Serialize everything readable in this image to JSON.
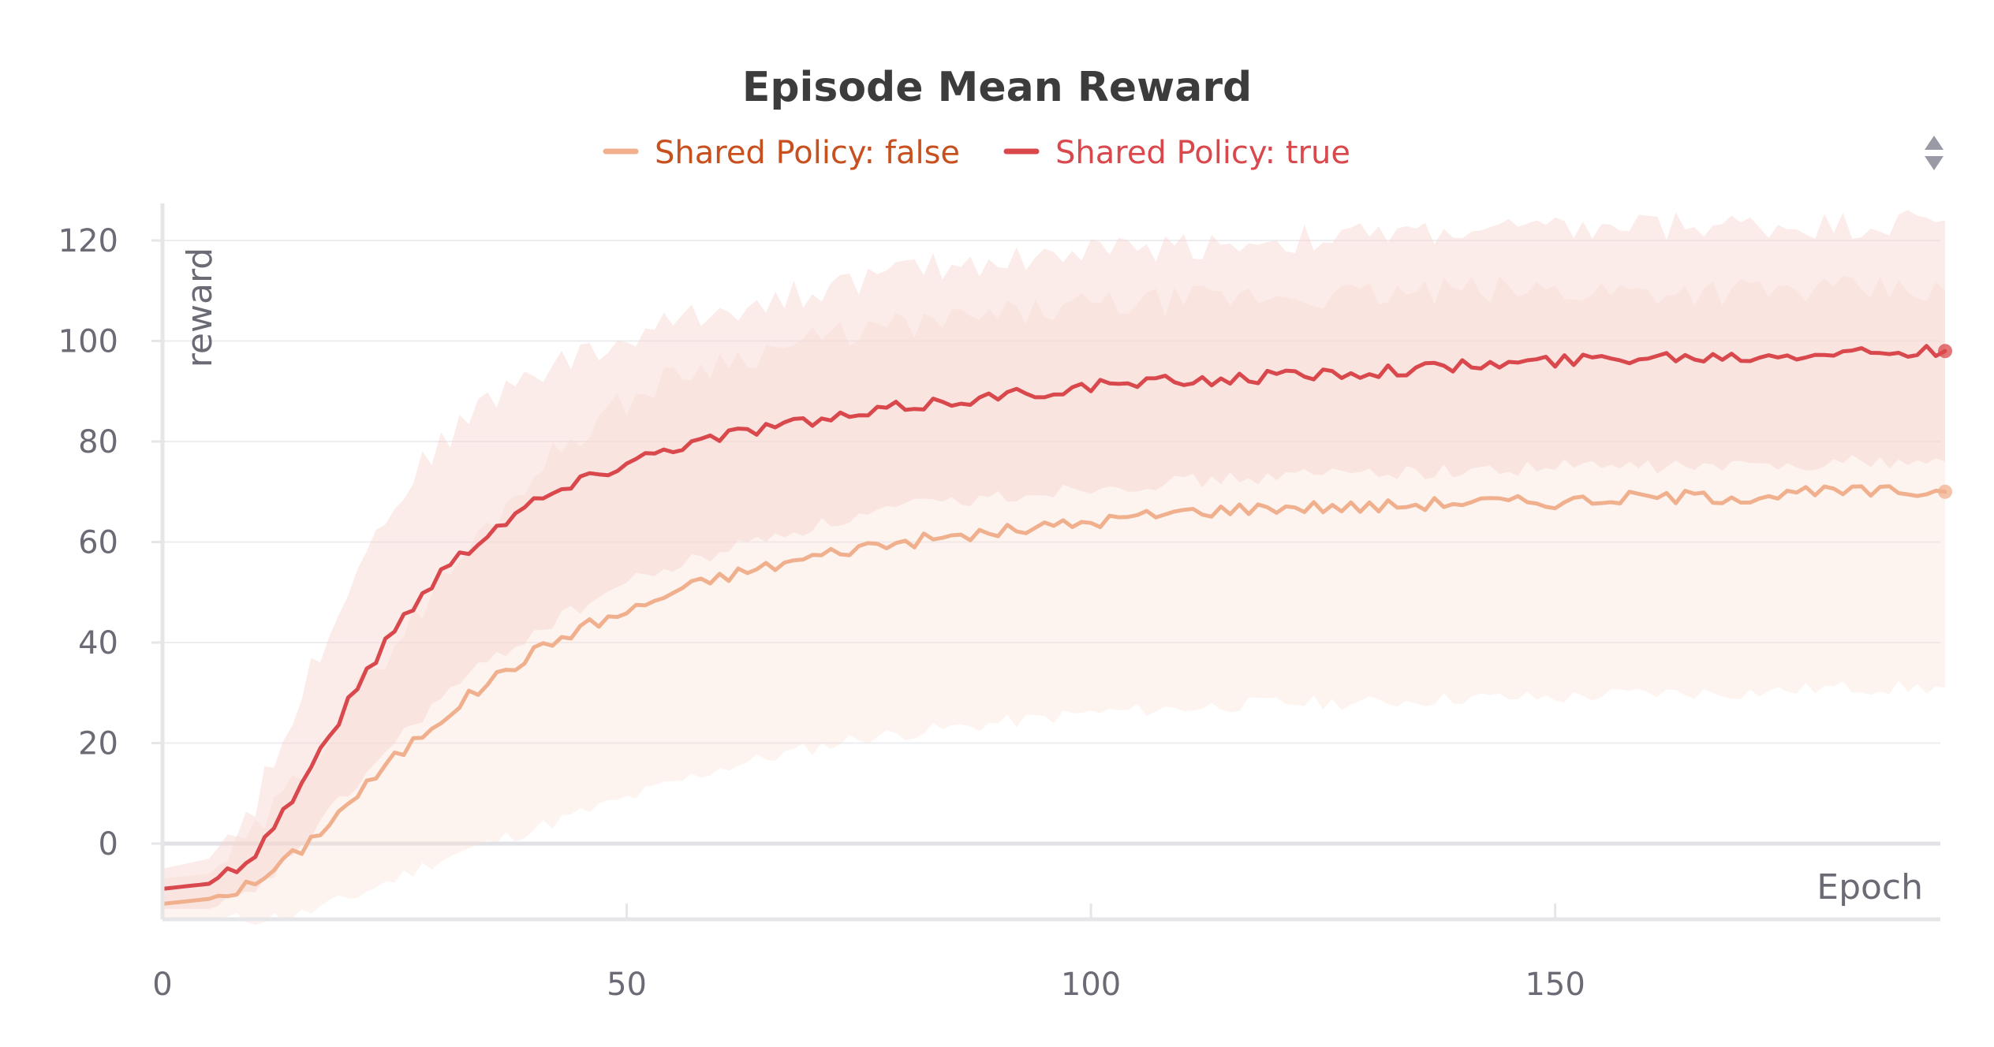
{
  "chart_data": {
    "type": "line",
    "title": "Episode Mean Reward",
    "xlabel": "Epoch",
    "ylabel": "reward",
    "xlim": [
      0,
      192
    ],
    "ylim": [
      -15,
      128
    ],
    "x_ticks": [
      0,
      50,
      100,
      150
    ],
    "y_ticks": [
      0,
      20,
      40,
      60,
      80,
      100,
      120
    ],
    "grid": true,
    "legend_position": "top-center",
    "series": [
      {
        "name": "Shared Policy: false",
        "color": "#f0b08e",
        "label_color": "#c8501e",
        "x": [
          0,
          5,
          10,
          15,
          20,
          25,
          30,
          35,
          40,
          45,
          50,
          55,
          60,
          65,
          70,
          75,
          80,
          85,
          90,
          95,
          100,
          110,
          120,
          130,
          140,
          150,
          160,
          170,
          180,
          192
        ],
        "y": [
          -12,
          -11,
          -8,
          -1,
          8,
          17,
          25,
          32,
          38,
          43,
          46,
          50,
          53,
          55,
          57,
          59,
          60,
          61,
          62,
          63,
          64,
          66,
          67,
          67,
          68,
          68,
          69,
          69,
          70,
          70
        ],
        "band_lower": [
          -15,
          -15,
          -15,
          -14,
          -11,
          -7,
          -3,
          0,
          3,
          6,
          9,
          12,
          15,
          17,
          19,
          21,
          22,
          23,
          24,
          25,
          26,
          27,
          28,
          28,
          29,
          29,
          30,
          30,
          31,
          31
        ],
        "band_upper": [
          -7,
          -6,
          2,
          14,
          28,
          40,
          52,
          63,
          74,
          82,
          88,
          93,
          96,
          98,
          100,
          102,
          103,
          104,
          105,
          106,
          107,
          108,
          109,
          109,
          110,
          110,
          110,
          110,
          110,
          110
        ]
      },
      {
        "name": "Shared Policy: true",
        "color": "#d9484c",
        "label_color": "#d9484c",
        "x": [
          0,
          5,
          10,
          15,
          20,
          25,
          30,
          35,
          40,
          45,
          50,
          55,
          60,
          65,
          70,
          75,
          80,
          85,
          90,
          95,
          100,
          110,
          120,
          130,
          140,
          150,
          160,
          170,
          180,
          192
        ],
        "y": [
          -9,
          -8,
          -2,
          12,
          28,
          43,
          54,
          62,
          68,
          72,
          76,
          79,
          81,
          83,
          84,
          85,
          87,
          88,
          89,
          90,
          91,
          92,
          93,
          94,
          95,
          96,
          97,
          97,
          98,
          98
        ],
        "band_lower": [
          -13,
          -13,
          -10,
          0,
          10,
          20,
          29,
          36,
          42,
          47,
          52,
          55,
          58,
          61,
          63,
          65,
          67,
          68,
          69,
          70,
          71,
          72,
          73,
          74,
          74,
          75,
          75,
          75,
          76,
          76
        ],
        "band_upper": [
          -5,
          -3,
          8,
          30,
          52,
          68,
          80,
          88,
          94,
          97,
          100,
          104,
          106,
          108,
          110,
          112,
          114,
          115,
          116,
          117,
          118,
          119,
          120,
          121,
          122,
          122,
          123,
          123,
          123,
          124
        ]
      }
    ]
  }
}
